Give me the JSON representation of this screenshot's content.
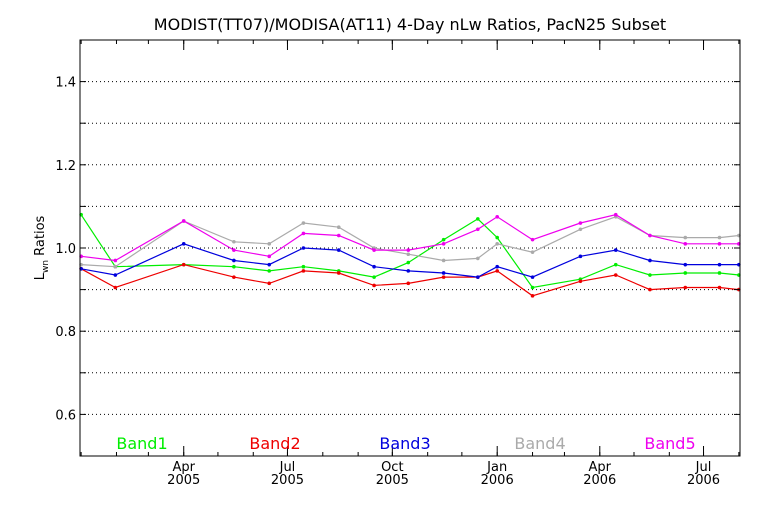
{
  "chart_data": {
    "type": "line",
    "title": "MODIST(TT07)/MODISA(AT11) 4-Day nLw Ratios, PacN25 Subset",
    "ylabel_main": "L",
    "ylabel_sub": "wn",
    "ylabel_rest": " Ratios",
    "ylim": [
      0.5,
      1.5
    ],
    "y_ticks": [
      "0.6",
      "0.8",
      "1.0",
      "1.2",
      "1.4"
    ],
    "x_ticks": [
      {
        "month": "Apr",
        "year": "2005"
      },
      {
        "month": "Jul",
        "year": "2005"
      },
      {
        "month": "Oct",
        "year": "2005"
      },
      {
        "month": "Jan",
        "year": "2006"
      },
      {
        "month": "Apr",
        "year": "2006"
      },
      {
        "month": "Jul",
        "year": "2006"
      }
    ],
    "grid": "horizontal dotted",
    "legend_position": "bottom",
    "x": [
      "2005-01-01",
      "2005-01-31",
      "2005-04-01",
      "2005-05-15",
      "2005-06-15",
      "2005-07-15",
      "2005-08-15",
      "2005-09-15",
      "2005-10-15",
      "2005-11-15",
      "2005-12-15",
      "2006-01-01",
      "2006-02-01",
      "2006-03-15",
      "2006-04-15",
      "2006-05-15",
      "2006-06-15",
      "2006-07-15",
      "2006-08-01"
    ],
    "series": [
      {
        "name": "Band1",
        "color": "#00ee00",
        "values": [
          1.08,
          0.955,
          0.96,
          0.955,
          0.945,
          0.955,
          0.945,
          0.93,
          0.965,
          1.02,
          1.07,
          1.025,
          0.905,
          0.925,
          0.96,
          0.935,
          0.94,
          0.94,
          0.935
        ]
      },
      {
        "name": "Band2",
        "color": "#ee0000",
        "values": [
          0.95,
          0.905,
          0.96,
          0.93,
          0.915,
          0.945,
          0.94,
          0.91,
          0.915,
          0.93,
          0.93,
          0.945,
          0.885,
          0.92,
          0.935,
          0.9,
          0.905,
          0.905,
          0.9
        ]
      },
      {
        "name": "Band3",
        "color": "#0000dd",
        "values": [
          0.95,
          0.935,
          1.01,
          0.97,
          0.96,
          1.0,
          0.995,
          0.955,
          0.945,
          0.94,
          0.93,
          0.955,
          0.93,
          0.98,
          0.995,
          0.97,
          0.96,
          0.96,
          0.96
        ]
      },
      {
        "name": "Band4",
        "color": "#aaaaaa",
        "values": [
          0.96,
          0.955,
          1.065,
          1.015,
          1.01,
          1.06,
          1.05,
          1.0,
          0.985,
          0.97,
          0.975,
          1.01,
          0.99,
          1.045,
          1.075,
          1.03,
          1.025,
          1.025,
          1.03
        ]
      },
      {
        "name": "Band5",
        "color": "#ee00ee",
        "values": [
          0.98,
          0.97,
          1.065,
          0.995,
          0.98,
          1.035,
          1.03,
          0.995,
          0.995,
          1.01,
          1.045,
          1.075,
          1.02,
          1.06,
          1.08,
          1.03,
          1.01,
          1.01,
          1.01
        ]
      }
    ]
  }
}
